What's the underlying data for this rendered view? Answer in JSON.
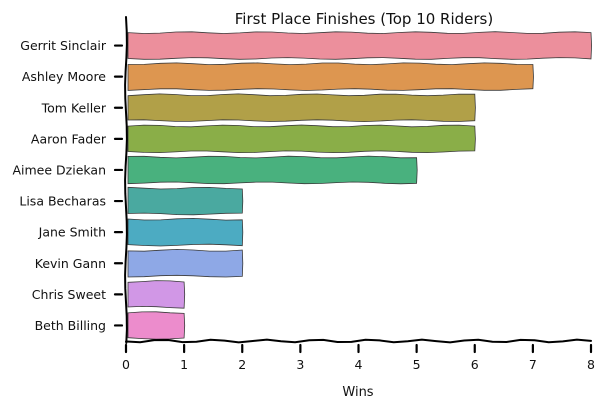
{
  "chart_data": {
    "type": "bar",
    "orientation": "horizontal",
    "title": "First Place Finishes (Top 10 Riders)",
    "xlabel": "Wins",
    "ylabel": "",
    "xlim": [
      0,
      8
    ],
    "xticks": [
      0,
      1,
      2,
      3,
      4,
      5,
      6,
      7,
      8
    ],
    "categories": [
      "Gerrit Sinclair",
      "Ashley Moore",
      "Tom Keller",
      "Aaron Fader",
      "Aimee Dziekan",
      "Lisa Becharas",
      "Jane Smith",
      "Kevin Gann",
      "Chris Sweet",
      "Beth Billing"
    ],
    "values": [
      8,
      7,
      6,
      6,
      5,
      2,
      2,
      2,
      1,
      1
    ],
    "colors": [
      "#ec8f9c",
      "#dd9650",
      "#b1a048",
      "#8aae48",
      "#49b17e",
      "#4aa9a0",
      "#4cabc2",
      "#8ea8e6",
      "#d197e6",
      "#ec8ccc"
    ],
    "grid": false,
    "legend": "none",
    "style": "hand-drawn"
  }
}
